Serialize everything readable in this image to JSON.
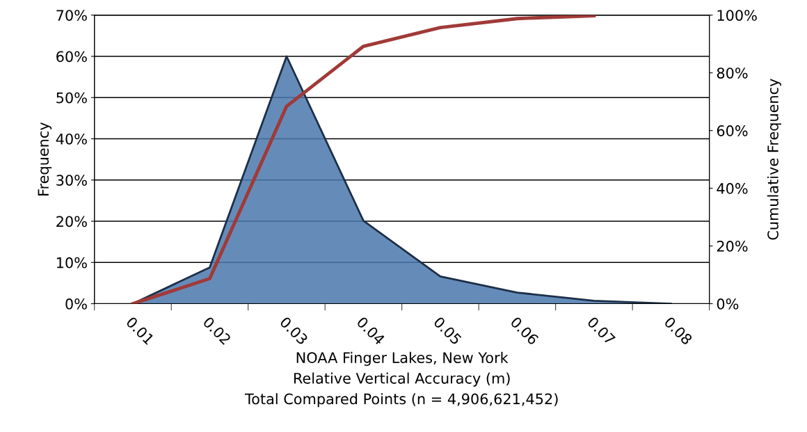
{
  "chart_data": {
    "type": "area",
    "xlabel": "NOAA Finger Lakes, New York\nRelative Vertical Accuracy (m)\nTotal Compared Points (n = 4,906,621,452)",
    "ylabel": "Frequency",
    "y2label": "Cumulative Frequency",
    "categories": [
      "0.01",
      "0.02",
      "0.03",
      "0.04",
      "0.05",
      "0.06",
      "0.07",
      "0.08"
    ],
    "series": [
      {
        "color": "#4a78ad",
        "values": [
          0,
          8.8,
          60,
          20.1,
          6.6,
          2.7,
          0.7,
          0
        ]
      },
      {
        "type": "line",
        "axis": "y2",
        "color": "#a03a38",
        "values": [
          0,
          8.7,
          68.4,
          89.2,
          95.7,
          98.8,
          99.8,
          null
        ]
      }
    ],
    "ylim": [
      0,
      70
    ],
    "yticks": [
      {
        "value": 0,
        "label": "0%"
      },
      {
        "value": 10,
        "label": "10%"
      },
      {
        "value": 20,
        "label": "20%"
      },
      {
        "value": 30,
        "label": "30%"
      },
      {
        "value": 40,
        "label": "40%"
      },
      {
        "value": 50,
        "label": "50%"
      },
      {
        "value": 60,
        "label": "60%"
      },
      {
        "value": 70,
        "label": "70%"
      }
    ],
    "y2lim": [
      0,
      100
    ],
    "y2ticks": [
      {
        "value": 0,
        "label": "0%"
      },
      {
        "value": 20,
        "label": "20%"
      },
      {
        "value": 40,
        "label": "40%"
      },
      {
        "value": 60,
        "label": "60%"
      },
      {
        "value": 80,
        "label": "80%"
      },
      {
        "value": 100,
        "label": "100%"
      }
    ],
    "grid": "y",
    "legend": false,
    "marker": "none",
    "line_style": "solid"
  }
}
